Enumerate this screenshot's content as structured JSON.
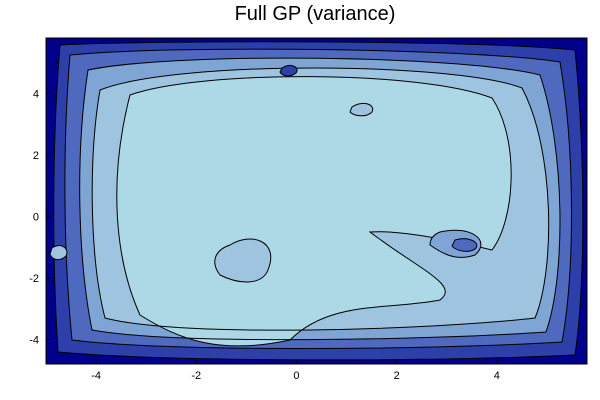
{
  "chart_data": {
    "type": "contour",
    "title": "Full GP (variance)",
    "xlabel": "",
    "ylabel": "",
    "xlim": [
      -5,
      5.8
    ],
    "ylim": [
      -4.8,
      5.8
    ],
    "x_ticks": [
      -4,
      -2,
      0,
      2,
      4
    ],
    "y_ticks": [
      4,
      2,
      0,
      -2,
      -4
    ],
    "grid": false,
    "colormap": {
      "low": "#add8e6",
      "mid": "#6f8fc7",
      "high": "#00008b"
    },
    "description_levels": 14
  }
}
